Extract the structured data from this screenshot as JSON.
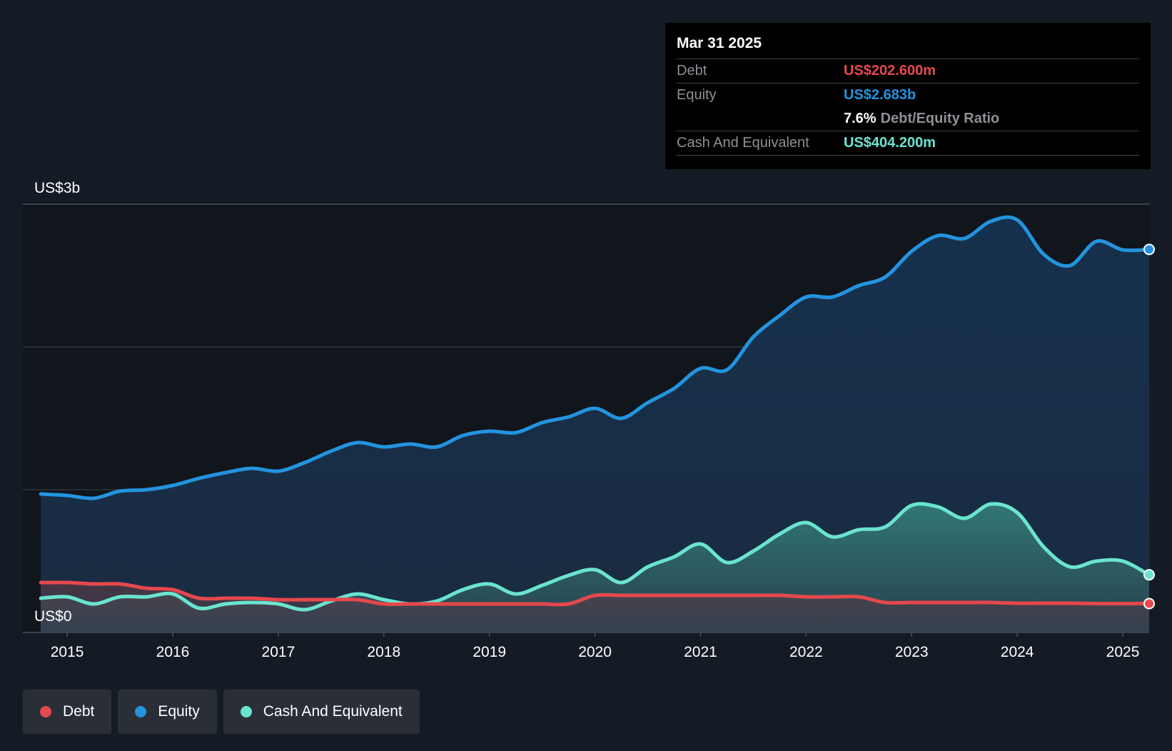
{
  "tooltip": {
    "date": "Mar 31 2025",
    "debt_label": "Debt",
    "debt_value": "US$202.600m",
    "equity_label": "Equity",
    "equity_value": "US$2.683b",
    "ratio_value": "7.6%",
    "ratio_label": "Debt/Equity Ratio",
    "cash_label": "Cash And Equivalent",
    "cash_value": "US$404.200m"
  },
  "legend": [
    {
      "label": "Debt",
      "color": "#e5484d"
    },
    {
      "label": "Equity",
      "color": "#2394df"
    },
    {
      "label": "Cash And Equivalent",
      "color": "#6ae4d0"
    }
  ],
  "colors": {
    "background": "#151b24",
    "plot_background": "#11151c",
    "debt": "#e5484d",
    "equity": "#2394df",
    "cash": "#6ae4d0",
    "grid": "#39414b"
  },
  "chart_data": {
    "type": "area",
    "title": "",
    "xlabel": "",
    "ylabel": "",
    "y_top_label": "US$3b",
    "y_bottom_label": "US$0",
    "ylim": [
      0,
      3.0
    ],
    "y_unit": "US$ billions",
    "grid": true,
    "legend_position": "bottom-left",
    "x_ticks": [
      "2015",
      "2016",
      "2017",
      "2018",
      "2019",
      "2020",
      "2021",
      "2022",
      "2023",
      "2024",
      "2025"
    ],
    "x_range": [
      2014.58,
      2025.25
    ],
    "series": [
      {
        "name": "Equity",
        "x": [
          2014.75,
          2015.0,
          2015.25,
          2015.5,
          2015.75,
          2016.0,
          2016.25,
          2016.5,
          2016.75,
          2017.0,
          2017.25,
          2017.5,
          2017.75,
          2018.0,
          2018.25,
          2018.5,
          2018.75,
          2019.0,
          2019.25,
          2019.5,
          2019.75,
          2020.0,
          2020.25,
          2020.5,
          2020.75,
          2021.0,
          2021.25,
          2021.5,
          2021.75,
          2022.0,
          2022.25,
          2022.5,
          2022.75,
          2023.0,
          2023.25,
          2023.5,
          2023.75,
          2024.0,
          2024.25,
          2024.5,
          2024.75,
          2025.0,
          2025.25
        ],
        "values": [
          0.97,
          0.96,
          0.94,
          0.99,
          1.0,
          1.03,
          1.08,
          1.12,
          1.15,
          1.13,
          1.19,
          1.27,
          1.33,
          1.3,
          1.32,
          1.3,
          1.38,
          1.41,
          1.4,
          1.47,
          1.51,
          1.57,
          1.5,
          1.61,
          1.71,
          1.85,
          1.84,
          2.07,
          2.22,
          2.35,
          2.35,
          2.43,
          2.49,
          2.67,
          2.78,
          2.76,
          2.88,
          2.89,
          2.65,
          2.57,
          2.74,
          2.68,
          2.683
        ]
      },
      {
        "name": "Cash And Equivalent",
        "x": [
          2014.75,
          2015.0,
          2015.25,
          2015.5,
          2015.75,
          2016.0,
          2016.25,
          2016.5,
          2016.75,
          2017.0,
          2017.25,
          2017.5,
          2017.75,
          2018.0,
          2018.25,
          2018.5,
          2018.75,
          2019.0,
          2019.25,
          2019.5,
          2019.75,
          2020.0,
          2020.25,
          2020.5,
          2020.75,
          2021.0,
          2021.25,
          2021.5,
          2021.75,
          2022.0,
          2022.25,
          2022.5,
          2022.75,
          2023.0,
          2023.25,
          2023.5,
          2023.75,
          2024.0,
          2024.25,
          2024.5,
          2024.75,
          2025.0,
          2025.25
        ],
        "values": [
          0.24,
          0.25,
          0.2,
          0.25,
          0.25,
          0.27,
          0.17,
          0.2,
          0.21,
          0.2,
          0.16,
          0.22,
          0.27,
          0.23,
          0.2,
          0.22,
          0.3,
          0.34,
          0.27,
          0.33,
          0.4,
          0.44,
          0.35,
          0.46,
          0.53,
          0.62,
          0.49,
          0.57,
          0.69,
          0.77,
          0.67,
          0.72,
          0.74,
          0.89,
          0.88,
          0.8,
          0.9,
          0.84,
          0.6,
          0.46,
          0.5,
          0.5,
          0.4042
        ]
      },
      {
        "name": "Debt",
        "x": [
          2014.75,
          2015.0,
          2015.25,
          2015.5,
          2015.75,
          2016.0,
          2016.25,
          2016.5,
          2016.75,
          2017.0,
          2017.25,
          2017.5,
          2017.75,
          2018.0,
          2018.25,
          2018.5,
          2018.75,
          2019.0,
          2019.25,
          2019.5,
          2019.75,
          2020.0,
          2020.25,
          2020.5,
          2020.75,
          2021.0,
          2021.25,
          2021.5,
          2021.75,
          2022.0,
          2022.25,
          2022.5,
          2022.75,
          2023.0,
          2023.25,
          2023.5,
          2023.75,
          2024.0,
          2024.25,
          2024.5,
          2024.75,
          2025.0,
          2025.25
        ],
        "values": [
          0.35,
          0.35,
          0.34,
          0.34,
          0.31,
          0.3,
          0.24,
          0.24,
          0.24,
          0.23,
          0.23,
          0.23,
          0.23,
          0.2,
          0.2,
          0.2,
          0.2,
          0.2,
          0.2,
          0.2,
          0.2,
          0.26,
          0.26,
          0.26,
          0.26,
          0.26,
          0.26,
          0.26,
          0.26,
          0.25,
          0.25,
          0.25,
          0.21,
          0.21,
          0.21,
          0.21,
          0.21,
          0.205,
          0.205,
          0.205,
          0.2026,
          0.2026,
          0.2026
        ]
      }
    ]
  }
}
